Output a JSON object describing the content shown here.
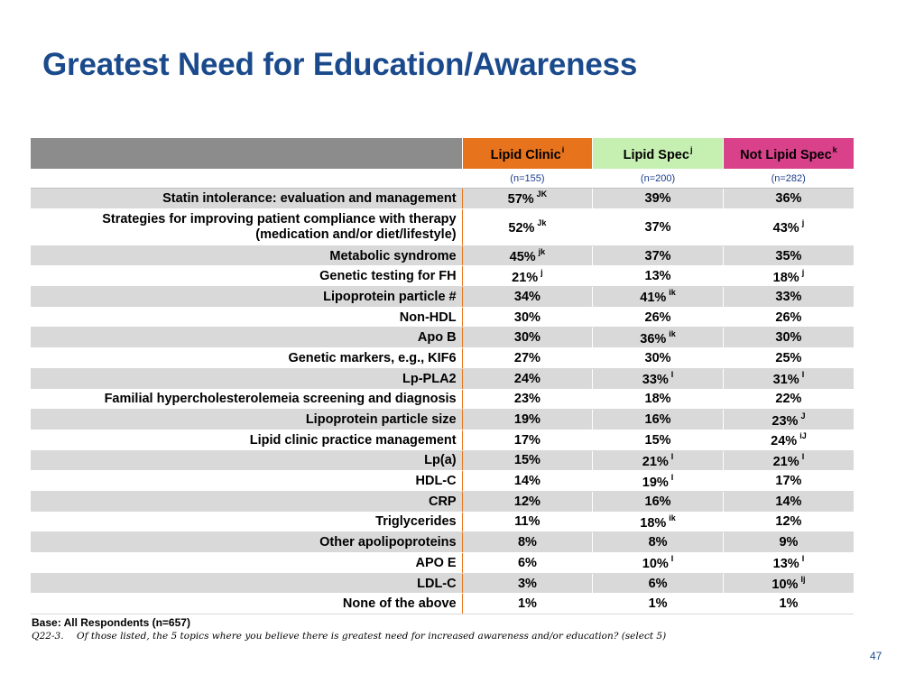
{
  "title": "Greatest Need for Education/Awareness",
  "columns": [
    {
      "label": "Lipid Clinic",
      "sup": "i",
      "n": "(n=155)",
      "color": "#e8731d"
    },
    {
      "label": "Lipid Spec",
      "sup": "j",
      "n": "(n=200)",
      "color": "#c6efb2"
    },
    {
      "label": "Not Lipid Spec",
      "sup": "k",
      "n": "(n=282)",
      "color": "#d9418a"
    }
  ],
  "rows": [
    {
      "label": "Statin intolerance: evaluation and management",
      "cells": [
        {
          "v": "57%",
          "s": "JK"
        },
        {
          "v": "39%",
          "s": ""
        },
        {
          "v": "36%",
          "s": ""
        }
      ]
    },
    {
      "label": "Strategies for improving patient compliance with therapy (medication and/or diet/lifestyle)",
      "label_line1": "Strategies for improving patient compliance with therapy",
      "label_line2": "(medication and/or diet/lifestyle)",
      "cells": [
        {
          "v": "52%",
          "s": "Jk"
        },
        {
          "v": "37%",
          "s": ""
        },
        {
          "v": "43%",
          "s": "j"
        }
      ]
    },
    {
      "label": "Metabolic syndrome",
      "cells": [
        {
          "v": "45%",
          "s": "jk"
        },
        {
          "v": "37%",
          "s": ""
        },
        {
          "v": "35%",
          "s": ""
        }
      ]
    },
    {
      "label": "Genetic testing for FH",
      "cells": [
        {
          "v": "21%",
          "s": "j"
        },
        {
          "v": "13%",
          "s": ""
        },
        {
          "v": "18%",
          "s": "j"
        }
      ]
    },
    {
      "label": "Lipoprotein particle #",
      "cells": [
        {
          "v": "34%",
          "s": ""
        },
        {
          "v": "41%",
          "s": "ik"
        },
        {
          "v": "33%",
          "s": ""
        }
      ]
    },
    {
      "label": "Non-HDL",
      "cells": [
        {
          "v": "30%",
          "s": ""
        },
        {
          "v": "26%",
          "s": ""
        },
        {
          "v": "26%",
          "s": ""
        }
      ]
    },
    {
      "label": "Apo B",
      "cells": [
        {
          "v": "30%",
          "s": ""
        },
        {
          "v": "36%",
          "s": "ik"
        },
        {
          "v": "30%",
          "s": ""
        }
      ]
    },
    {
      "label": "Genetic markers, e.g., KIF6",
      "cells": [
        {
          "v": "27%",
          "s": ""
        },
        {
          "v": "30%",
          "s": ""
        },
        {
          "v": "25%",
          "s": ""
        }
      ]
    },
    {
      "label": "Lp-PLA2",
      "cells": [
        {
          "v": "24%",
          "s": ""
        },
        {
          "v": "33%",
          "s": "I"
        },
        {
          "v": "31%",
          "s": "I"
        }
      ]
    },
    {
      "label": "Familial hypercholesterolemeia screening and diagnosis",
      "cells": [
        {
          "v": "23%",
          "s": ""
        },
        {
          "v": "18%",
          "s": ""
        },
        {
          "v": "22%",
          "s": ""
        }
      ]
    },
    {
      "label": "Lipoprotein particle size",
      "cells": [
        {
          "v": "19%",
          "s": ""
        },
        {
          "v": "16%",
          "s": ""
        },
        {
          "v": "23%",
          "s": "J"
        }
      ]
    },
    {
      "label": "Lipid clinic practice management",
      "cells": [
        {
          "v": "17%",
          "s": ""
        },
        {
          "v": "15%",
          "s": ""
        },
        {
          "v": "24%",
          "s": "iJ"
        }
      ]
    },
    {
      "label": "Lp(a)",
      "cells": [
        {
          "v": "15%",
          "s": ""
        },
        {
          "v": "21%",
          "s": "I"
        },
        {
          "v": "21%",
          "s": "I"
        }
      ]
    },
    {
      "label": "HDL-C",
      "cells": [
        {
          "v": "14%",
          "s": ""
        },
        {
          "v": "19%",
          "s": "I"
        },
        {
          "v": "17%",
          "s": ""
        }
      ]
    },
    {
      "label": "CRP",
      "cells": [
        {
          "v": "12%",
          "s": ""
        },
        {
          "v": "16%",
          "s": ""
        },
        {
          "v": "14%",
          "s": ""
        }
      ]
    },
    {
      "label": "Triglycerides",
      "cells": [
        {
          "v": "11%",
          "s": ""
        },
        {
          "v": "18%",
          "s": "ik"
        },
        {
          "v": "12%",
          "s": ""
        }
      ]
    },
    {
      "label": "Other apolipoproteins",
      "cells": [
        {
          "v": "8%",
          "s": ""
        },
        {
          "v": "8%",
          "s": ""
        },
        {
          "v": "9%",
          "s": ""
        }
      ]
    },
    {
      "label": "APO E",
      "cells": [
        {
          "v": "6%",
          "s": ""
        },
        {
          "v": "10%",
          "s": "I"
        },
        {
          "v": "13%",
          "s": "I"
        }
      ]
    },
    {
      "label": "LDL-C",
      "cells": [
        {
          "v": "3%",
          "s": ""
        },
        {
          "v": "6%",
          "s": ""
        },
        {
          "v": "10%",
          "s": "Ij"
        }
      ]
    },
    {
      "label": "None of the above",
      "cells": [
        {
          "v": "1%",
          "s": ""
        },
        {
          "v": "1%",
          "s": ""
        },
        {
          "v": "1%",
          "s": ""
        }
      ]
    }
  ],
  "base_note": "Base: All Respondents (n=657)",
  "question_id": "Q22-3.",
  "question_text": "Of those listed, the 5 topics where you believe there is greatest need for increased awareness and/or education? (select 5)",
  "page_number": "47"
}
